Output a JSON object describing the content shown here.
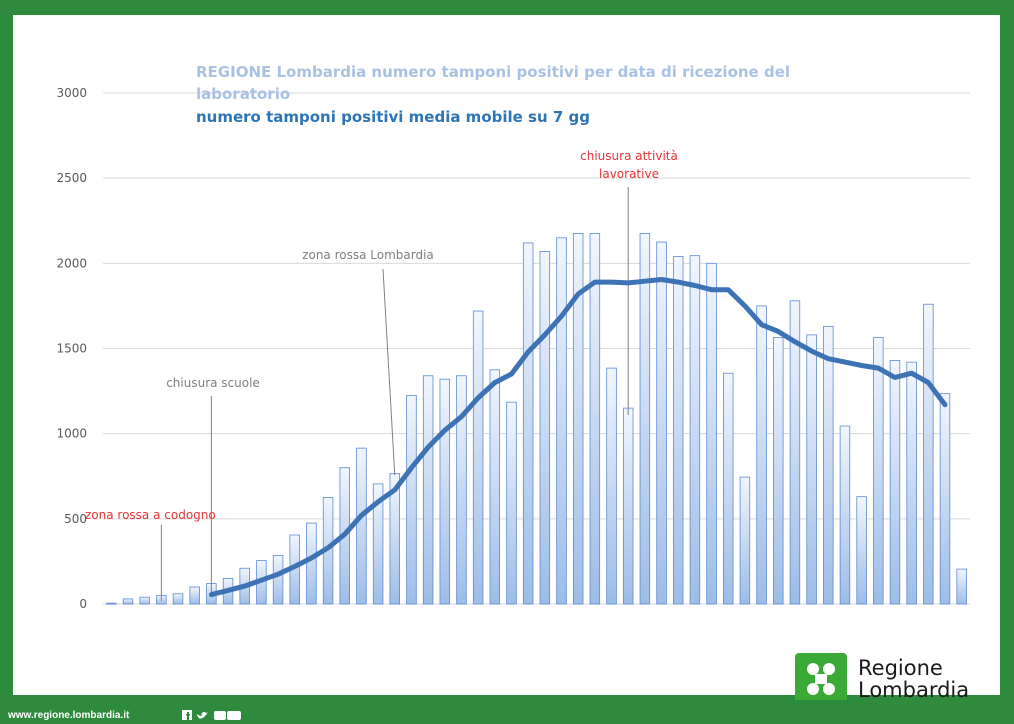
{
  "chart_data": {
    "type": "bar",
    "title": "REGIONE Lombardia numero tamponi positivi per data di ricezione del laboratorio",
    "subtitle": "numero tamponi positivi media mobile su 7 gg",
    "ylim": [
      0,
      3000
    ],
    "yticks": [
      "0",
      "500",
      "1000",
      "1500",
      "2000",
      "2500",
      "3000"
    ],
    "grid": true,
    "colors": {
      "bar_stroke": "#5b8ad6",
      "bar_fill_top": "#f2f6fd",
      "bar_fill_bottom": "#9dbde6",
      "line": "#3d73b4",
      "title": "#a9c2e3",
      "subtitle": "#2e75b6",
      "grid": "#d9d9d9",
      "annotation_red": "#e23434",
      "annotation_gray": "#808080"
    },
    "series": [
      {
        "values": [
          5,
          30,
          40,
          50,
          60,
          100,
          120,
          150,
          210,
          255,
          285,
          405,
          475,
          625,
          800,
          915,
          705,
          765,
          1225,
          1340,
          1320,
          1340,
          1720,
          1375,
          1185,
          2120,
          2070,
          2150,
          2175,
          2175,
          1385,
          1150,
          2175,
          2125,
          2040,
          2045,
          2000,
          1355,
          745,
          1750,
          1565,
          1780,
          1580,
          1630,
          1045,
          630,
          1565,
          1430,
          1420,
          1760,
          1235,
          205
        ]
      },
      {
        "start_index": 6,
        "values": [
          55,
          80,
          105,
          140,
          175,
          220,
          270,
          330,
          410,
          520,
          600,
          670,
          800,
          920,
          1020,
          1100,
          1210,
          1300,
          1350,
          1480,
          1580,
          1690,
          1820,
          1890,
          1890,
          1885,
          1895,
          1905,
          1890,
          1870,
          1845,
          1845,
          1750,
          1640,
          1600,
          1540,
          1485,
          1440,
          1420,
          1400,
          1385,
          1330,
          1355,
          1300,
          1170
        ]
      }
    ],
    "annotations": [
      {
        "text": "zona rossa a codogno",
        "index": 3
      },
      {
        "text": "chiusura scuole",
        "index": 6
      },
      {
        "text": "zona rossa  Lombardia",
        "index": 17
      },
      {
        "text": "chiusura attività",
        "text2": "lavorative",
        "index": 31
      }
    ]
  },
  "footer": {
    "url": "www.regione.lombardia.it"
  },
  "logo": {
    "line1": "Regione",
    "line2": "Lombardia",
    "color": "#3aa935"
  }
}
